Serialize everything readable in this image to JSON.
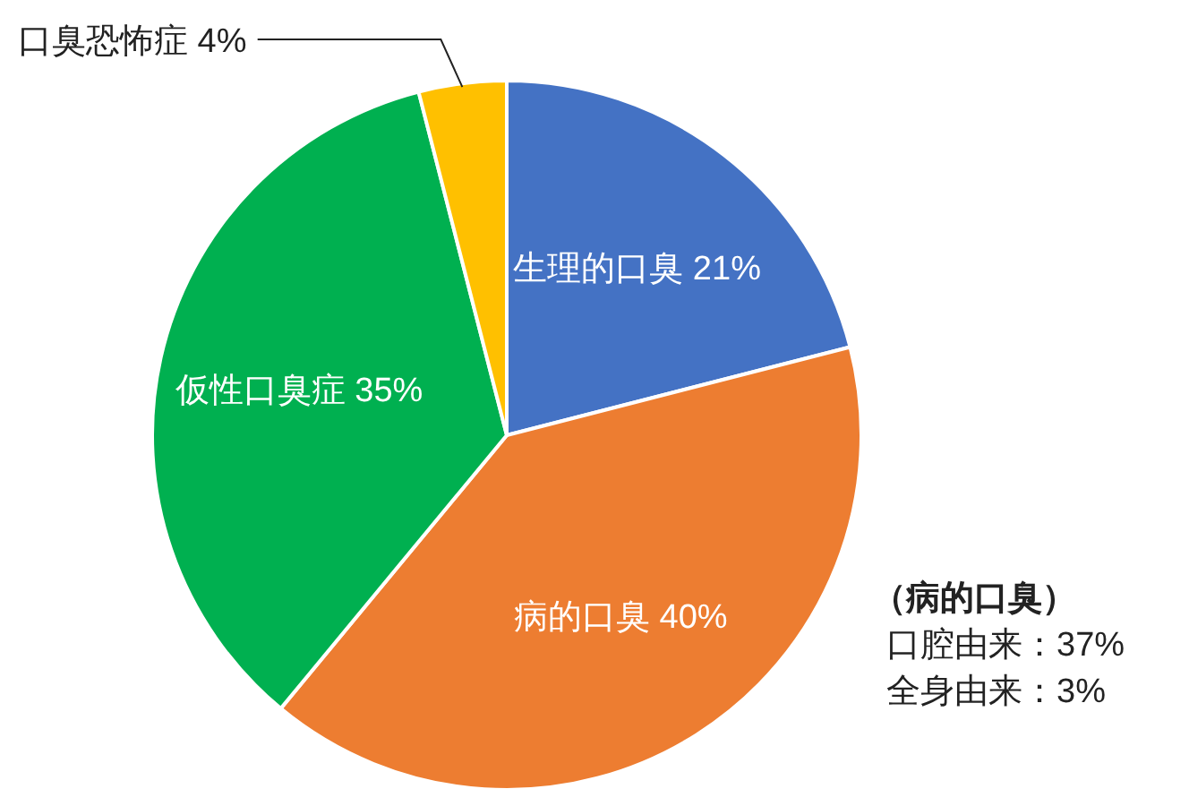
{
  "chart_data": {
    "type": "pie",
    "categories": [
      "生理的口臭",
      "病的口臭",
      "仮性口臭症",
      "口臭恐怖症"
    ],
    "values": [
      21,
      40,
      35,
      4
    ],
    "value_labels": [
      "21%",
      "40%",
      "35%",
      "4%"
    ],
    "colors": [
      "#4472c4",
      "#ed7d31",
      "#00b050",
      "#ffc000"
    ],
    "annotations": [
      "（病的口臭）",
      "口腔由来：37%",
      "全身由来：3%"
    ]
  }
}
